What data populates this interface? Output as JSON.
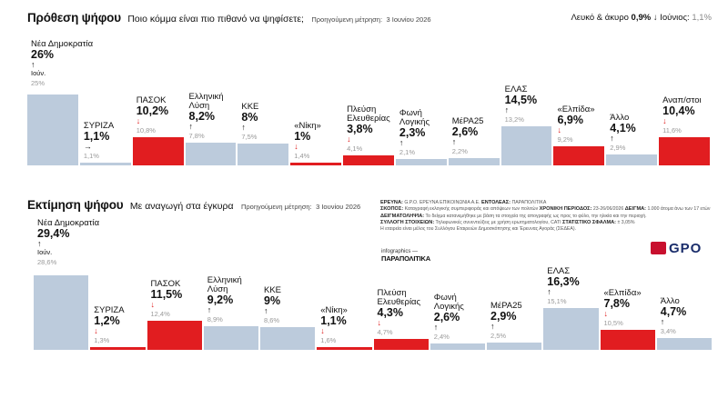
{
  "summary": {
    "label": "Λευκό & άκυρο",
    "value": "0,9%",
    "arrow": "↓",
    "prev_label": "Ιούνιος:",
    "prev_value": "1,1%"
  },
  "section1": {
    "title": "Πρόθεση ψήφου",
    "question": "Ποιο κόμμα είναι πιο πιθανό να ψηφίσετε;",
    "prev_label": "Προηγούμενη μέτρηση:",
    "prev_date": "3 Ιουνίου 2026"
  },
  "section2": {
    "title": "Εκτίμηση ψήφου",
    "question": "Με αναγωγή στα έγκυρα",
    "prev_label": "Προηγούμενη μέτρηση:",
    "prev_date": "3 Ιουνίου 2026"
  },
  "chart_data": [
    {
      "type": "bar",
      "title": "Πρόθεση ψήφου",
      "prev_marker": "Ιούν.",
      "categories": [
        "Νέα Δημοκρατία",
        "ΣΥΡΙΖΑ",
        "ΠΑΣΟΚ",
        "Ελληνική Λύση",
        "ΚΚΕ",
        "«Νίκη»",
        "Πλεύση Ελευθερίας",
        "Φωνή Λογικής",
        "ΜέΡΑ25",
        "ΕΛΑΣ",
        "«Ελπίδα»",
        "Άλλο",
        "Αναπ/στοι"
      ],
      "values": [
        26,
        1.1,
        10.2,
        8.2,
        8,
        1,
        3.8,
        2.3,
        2.6,
        14.5,
        6.9,
        4.1,
        10.4
      ],
      "value_labels": [
        "26%",
        "1,1%",
        "10,2%",
        "8,2%",
        "8%",
        "1%",
        "3,8%",
        "2,3%",
        "2,6%",
        "14,5%",
        "6,9%",
        "4,1%",
        "10,4%"
      ],
      "previous_labels": [
        "25%",
        "1,1%",
        "10,8%",
        "7,8%",
        "7,5%",
        "1,4%",
        "4,1%",
        "2,1%",
        "2,2%",
        "13,2%",
        "9,2%",
        "2,9%",
        "11,6%"
      ],
      "trend": [
        "up",
        "flat",
        "down",
        "up",
        "up",
        "down",
        "down",
        "up",
        "up",
        "up",
        "down",
        "up",
        "down"
      ],
      "bar_colors": [
        "#bccbdc",
        "#bccbdc",
        "#e11d20",
        "#bccbdc",
        "#bccbdc",
        "#e11d20",
        "#e11d20",
        "#bccbdc",
        "#bccbdc",
        "#bccbdc",
        "#e11d20",
        "#bccbdc",
        "#e11d20"
      ]
    },
    {
      "type": "bar",
      "title": "Εκτίμηση ψήφου",
      "prev_marker": "Ιούν.",
      "categories": [
        "Νέα Δημοκρατία",
        "ΣΥΡΙΖΑ",
        "ΠΑΣΟΚ",
        "Ελληνική Λύση",
        "ΚΚΕ",
        "«Νίκη»",
        "Πλεύση Ελευθερίας",
        "Φωνή Λογικής",
        "ΜέΡΑ25",
        "ΕΛΑΣ",
        "«Ελπίδα»",
        "Άλλο"
      ],
      "values": [
        29.4,
        1.2,
        11.5,
        9.2,
        9,
        1.1,
        4.3,
        2.6,
        2.9,
        16.3,
        7.8,
        4.7
      ],
      "value_labels": [
        "29,4%",
        "1,2%",
        "11,5%",
        "9,2%",
        "9%",
        "1,1%",
        "4,3%",
        "2,6%",
        "2,9%",
        "16,3%",
        "7,8%",
        "4,7%"
      ],
      "previous_labels": [
        "28,6%",
        "1,3%",
        "12,4%",
        "8,9%",
        "8,6%",
        "1,6%",
        "4,7%",
        "2,4%",
        "2,5%",
        "15,1%",
        "10,5%",
        "3,4%"
      ],
      "trend": [
        "up",
        "down",
        "down",
        "up",
        "up",
        "down",
        "down",
        "up",
        "up",
        "up",
        "down",
        "up"
      ],
      "bar_colors": [
        "#bccbdc",
        "#e11d20",
        "#e11d20",
        "#bccbdc",
        "#bccbdc",
        "#e11d20",
        "#e11d20",
        "#bccbdc",
        "#bccbdc",
        "#bccbdc",
        "#e11d20",
        "#bccbdc"
      ]
    }
  ],
  "credits": {
    "line1_label": "ΕΡΕΥΝΑ:",
    "line1_text": "G.P.O. ΕΡΕΥΝΑ ΕΠΙΚΟΙΝΩΝΙΑ Α.Ε.",
    "line1_label2": "ΕΝΤΟΛΕΑΣ:",
    "line1_text2": "ΠΑΡΑΠΟΛΙΤΙΚΑ",
    "line2_label": "ΣΚΟΠΟΣ:",
    "line2_text": "Καταγραφή εκλογικής συμπεριφοράς και απόψεων των πολιτών",
    "line2_label2": "ΧΡΟΝΙΚΗ ΠΕΡΙΟΔΟΣ:",
    "line2_text2": "23-26/06/2026",
    "line2_label3": "ΔΕΙΓΜΑ:",
    "line2_text3": "1.000 άτομα άνω των 17 ετών",
    "line3": "Το δείγμα κατανεμήθηκε με βάση τα στοιχεία της απογραφής ως προς το φύλο, την ηλικία και την περιοχή.",
    "line3_label": "ΔΕΙΓΜΑΤΟΛΗΨΙΑ:",
    "line4_label": "ΣΥΛΛΟΓΗ ΣΤΟΙΧΕΙΩΝ:",
    "line4_text": "Τηλεφωνικές συνεντεύξεις με χρήση ερωτηματολογίου, CATI",
    "line5_label": "ΣΤΑΤΙΣΤΙΚΟ ΣΦΑΛΜΑ:",
    "line5_text": "± 3,05%",
    "line6": "Η εταιρεία είναι μέλος του Συλλόγου Εταιρειών Δημοσκόπησης και Έρευνας Αγοράς (ΣΕΔΕΑ)."
  },
  "infographics": {
    "label": "infographics —",
    "brand": "ΠΑΡΑΠΟΛΙΤΙΚΑ"
  },
  "logo": {
    "text": "GPO"
  }
}
